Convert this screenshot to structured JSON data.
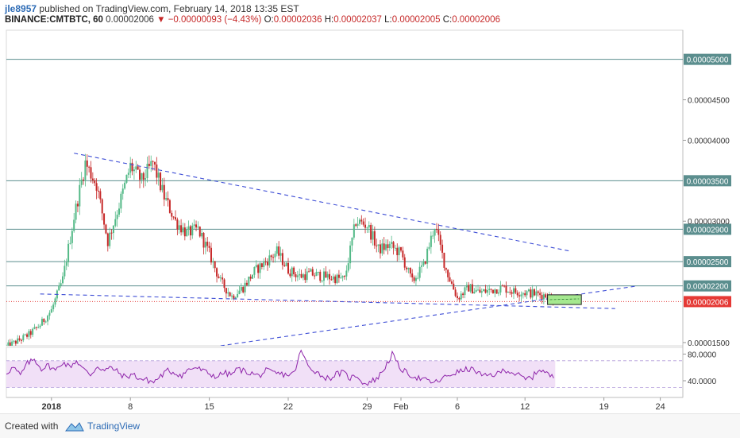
{
  "header": {
    "username": "jle8957",
    "published_text": "published on TradingView.com, February 14, 2018 13:35 EST",
    "symbol": "BINANCE:CMTBTC, 60",
    "last": "0.00002006",
    "change_arrow": "▼",
    "change": "−0.00000093 (−4.43%)",
    "o_label": "O:",
    "o": "0.00002036",
    "h_label": "H:",
    "h": "0.00002037",
    "l_label": "L:",
    "l": "0.00002005",
    "c_label": "C:",
    "c": "0.00002006"
  },
  "footer": {
    "created_with": "Created with",
    "brand": "TradingView"
  },
  "colors": {
    "up": "#53b987",
    "down": "#c62828",
    "hline": "#5b8e8e",
    "trend": "#3f4fd6",
    "rsi": "#8e24aa",
    "rsi_band": "#f1e0f7",
    "last_price": "#e53935",
    "target_box": "#a5e88f"
  },
  "chart_data": [
    {
      "type": "candlestick",
      "name": "CMTBTC 60",
      "ylim": [
        1.46e-05,
        5.36e-05
      ],
      "xlim_days": [
        "2017-12-28",
        "2018-02-26"
      ],
      "y_ticks": [
        "0.00004500",
        "0.00004000",
        "0.00003000",
        "0.00001500"
      ],
      "x_ticks": [
        {
          "label": "2018",
          "date": "2018-01-01"
        },
        {
          "label": "8",
          "date": "2018-01-08"
        },
        {
          "label": "15",
          "date": "2018-01-15"
        },
        {
          "label": "22",
          "date": "2018-01-22"
        },
        {
          "label": "29",
          "date": "2018-01-29"
        },
        {
          "label": "Feb",
          "date": "2018-02-01"
        },
        {
          "label": "6",
          "date": "2018-02-06"
        },
        {
          "label": "12",
          "date": "2018-02-12"
        },
        {
          "label": "19",
          "date": "2018-02-19"
        },
        {
          "label": "24",
          "date": "2018-02-24"
        }
      ],
      "price_path": [
        [
          "2017-12-28",
          1.45e-05
        ],
        [
          "2017-12-29",
          1.52e-05
        ],
        [
          "2017-12-30",
          1.6e-05
        ],
        [
          "2017-12-31",
          1.72e-05
        ],
        [
          "2018-01-01",
          1.9e-05
        ],
        [
          "2018-01-02",
          2.28e-05
        ],
        [
          "2018-01-03",
          3.05e-05
        ],
        [
          "2018-01-04",
          3.72e-05
        ],
        [
          "2018-01-05",
          3.45e-05
        ],
        [
          "2018-01-06",
          2.75e-05
        ],
        [
          "2018-01-07",
          3.2e-05
        ],
        [
          "2018-01-08",
          3.68e-05
        ],
        [
          "2018-01-09",
          3.5e-05
        ],
        [
          "2018-01-10",
          3.72e-05
        ],
        [
          "2018-01-11",
          3.3e-05
        ],
        [
          "2018-01-12",
          3e-05
        ],
        [
          "2018-01-13",
          2.85e-05
        ],
        [
          "2018-01-14",
          2.9e-05
        ],
        [
          "2018-01-15",
          2.6e-05
        ],
        [
          "2018-01-16",
          2.25e-05
        ],
        [
          "2018-01-17",
          2.07e-05
        ],
        [
          "2018-01-18",
          2.18e-05
        ],
        [
          "2018-01-19",
          2.38e-05
        ],
        [
          "2018-01-20",
          2.5e-05
        ],
        [
          "2018-01-21",
          2.62e-05
        ],
        [
          "2018-01-22",
          2.4e-05
        ],
        [
          "2018-01-23",
          2.32e-05
        ],
        [
          "2018-01-24",
          2.35e-05
        ],
        [
          "2018-01-25",
          2.32e-05
        ],
        [
          "2018-01-26",
          2.3e-05
        ],
        [
          "2018-01-27",
          2.28e-05
        ],
        [
          "2018-01-28",
          3e-05
        ],
        [
          "2018-01-29",
          2.95e-05
        ],
        [
          "2018-01-30",
          2.65e-05
        ],
        [
          "2018-01-31",
          2.7e-05
        ],
        [
          "2018-02-01",
          2.6e-05
        ],
        [
          "2018-02-02",
          2.25e-05
        ],
        [
          "2018-02-03",
          2.45e-05
        ],
        [
          "2018-02-04",
          2.95e-05
        ],
        [
          "2018-02-05",
          2.4e-05
        ],
        [
          "2018-02-06",
          2.05e-05
        ],
        [
          "2018-02-07",
          2.18e-05
        ],
        [
          "2018-02-08",
          2.12e-05
        ],
        [
          "2018-02-09",
          2.15e-05
        ],
        [
          "2018-02-10",
          2.18e-05
        ],
        [
          "2018-02-11",
          2.13e-05
        ],
        [
          "2018-02-12",
          2.12e-05
        ],
        [
          "2018-02-13",
          2.1e-05
        ],
        [
          "2018-02-14",
          2.08e-05
        ],
        [
          "2018-02-14T13:00",
          2.006e-05
        ]
      ],
      "horizontal_levels": [
        "0.00005000",
        "0.00003500",
        "0.00002900",
        "0.00002500",
        "0.00002200"
      ],
      "last_price_label": "0.00002006",
      "trendlines": [
        {
          "from": [
            "2018-01-03",
            3.84e-05
          ],
          "to": [
            "2018-02-16",
            2.63e-05
          ]
        },
        {
          "from": [
            "2018-01-16",
            1.46e-05
          ],
          "to": [
            "2018-02-22",
            2.2e-05
          ]
        },
        {
          "from": [
            "2017-12-31",
            2.1e-05
          ],
          "to": [
            "2018-02-20",
            1.92e-05
          ]
        }
      ],
      "target_box": {
        "from": [
          "2018-02-14",
          2.09e-05
        ],
        "to": [
          "2018-02-17",
          1.97e-05
        ]
      }
    },
    {
      "type": "line",
      "name": "RSI",
      "ylim": [
        15,
        90
      ],
      "y_ticks": [
        "80.0000",
        "40.0000"
      ],
      "bands": [
        70,
        30
      ],
      "values_sampled": [
        52,
        60,
        48,
        66,
        72,
        58,
        63,
        55,
        68,
        61,
        70,
        57,
        49,
        62,
        55,
        60,
        52,
        45,
        50,
        43,
        41,
        38,
        47,
        55,
        52,
        48,
        57,
        60,
        55,
        50,
        46,
        52,
        49,
        58,
        54,
        51,
        47,
        55,
        52,
        50,
        49,
        51,
        85,
        62,
        55,
        47,
        43,
        50,
        52,
        44,
        48,
        35,
        39,
        45,
        61,
        80,
        60,
        52,
        47,
        43,
        40,
        37,
        42,
        48,
        52,
        55,
        58,
        54,
        46,
        49,
        50,
        57,
        53,
        48,
        42,
        46,
        58,
        51,
        44
      ]
    }
  ]
}
